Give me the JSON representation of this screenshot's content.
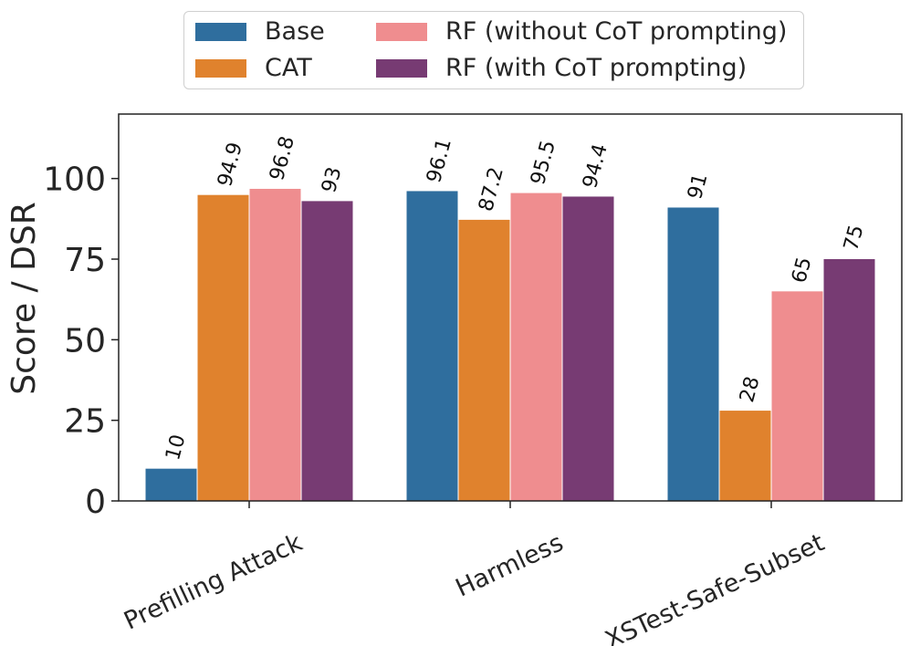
{
  "chart_data": {
    "type": "bar",
    "categories": [
      "Prefilling Attack",
      "Harmless",
      "XSTest-Safe-Subset"
    ],
    "series": [
      {
        "name": "Base",
        "color": "#2f6e9e",
        "values": [
          10,
          96.1,
          91
        ],
        "labels": [
          "10",
          "96.1",
          "91"
        ]
      },
      {
        "name": "CAT",
        "color": "#e0822d",
        "values": [
          94.9,
          87.2,
          28
        ],
        "labels": [
          "94.9",
          "87.2",
          "28"
        ]
      },
      {
        "name": "RF (without CoT prompting)",
        "color": "#ef8d8f",
        "values": [
          96.8,
          95.5,
          65
        ],
        "labels": [
          "96.8",
          "95.5",
          "65"
        ]
      },
      {
        "name": "RF (with CoT prompting)",
        "color": "#773b73",
        "values": [
          93,
          94.4,
          75
        ],
        "labels": [
          "93",
          "94.4",
          "75"
        ]
      }
    ],
    "ylabel": "Score / DSR",
    "xlabel": "",
    "ylim": [
      0,
      120
    ],
    "yticks": [
      0,
      25,
      50,
      75,
      100
    ],
    "legend": "top-center"
  }
}
